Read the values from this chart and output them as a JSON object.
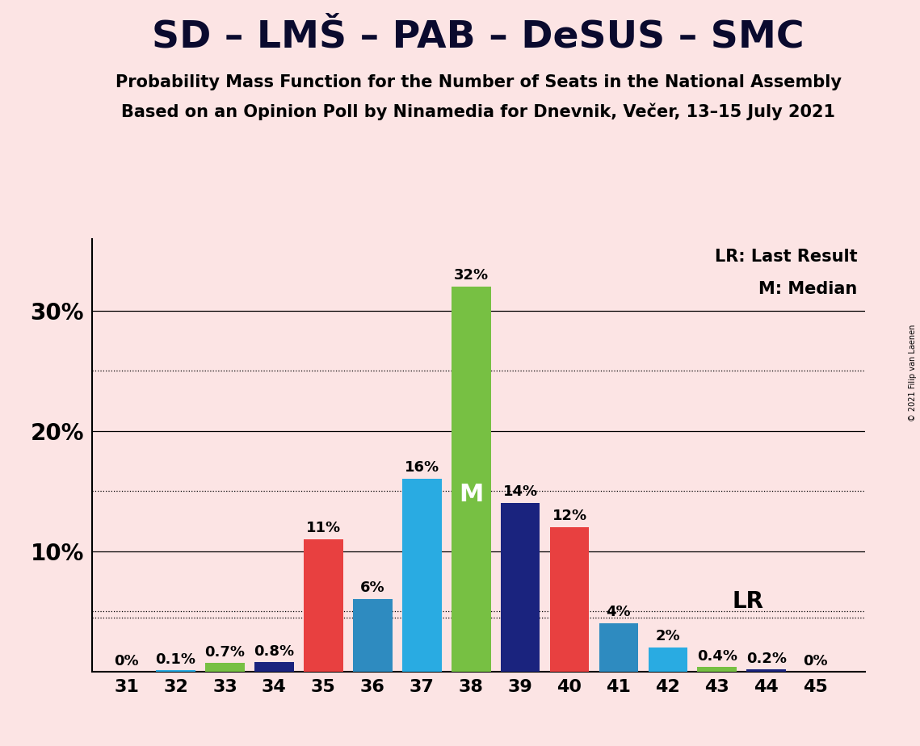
{
  "title": "SD – LMŠ – PAB – DeSUS – SMC",
  "subtitle1": "Probability Mass Function for the Number of Seats in the National Assembly",
  "subtitle2": "Based on an Opinion Poll by Ninamedia for Dnevnik, Večer, 13–15 July 2021",
  "copyright": "© 2021 Filip van Laenen",
  "seats": [
    31,
    32,
    33,
    34,
    35,
    36,
    37,
    38,
    39,
    40,
    41,
    42,
    43,
    44,
    45
  ],
  "values": [
    0,
    0.1,
    0.7,
    0.8,
    11,
    6,
    16,
    32,
    14,
    12,
    4,
    2,
    0.4,
    0.2,
    0
  ],
  "bar_colors": [
    "#e84040",
    "#29abe2",
    "#77c043",
    "#1a237e",
    "#e84040",
    "#2e8bc0",
    "#29abe2",
    "#77c043",
    "#1a237e",
    "#e84040",
    "#2e8bc0",
    "#29abe2",
    "#77c043",
    "#1a237e",
    "#e84040"
  ],
  "background_color": "#fce4e4",
  "median_seat": 38,
  "lr_seat": 42,
  "lr_label": "LR",
  "median_label": "M",
  "median_color": "#ffffff",
  "dotted_yticks": [
    5,
    15,
    25
  ],
  "solid_yticks": [
    10,
    20,
    30
  ],
  "lr_value": 4.5,
  "ylim_max": 36,
  "annotations": {
    "31": "0%",
    "32": "0.1%",
    "33": "0.7%",
    "34": "0.8%",
    "35": "11%",
    "36": "6%",
    "37": "16%",
    "38": "32%",
    "39": "14%",
    "40": "12%",
    "41": "4%",
    "42": "2%",
    "43": "0.4%",
    "44": "0.2%",
    "45": "0%"
  },
  "title_color": "#0a0a2e",
  "title_fontsize": 34,
  "subtitle_fontsize": 15,
  "legend_fontsize": 15,
  "bar_label_fontsize": 13,
  "tick_fontsize": 16,
  "ytick_fontsize": 20,
  "median_fontsize": 22,
  "lr_fontsize": 20
}
